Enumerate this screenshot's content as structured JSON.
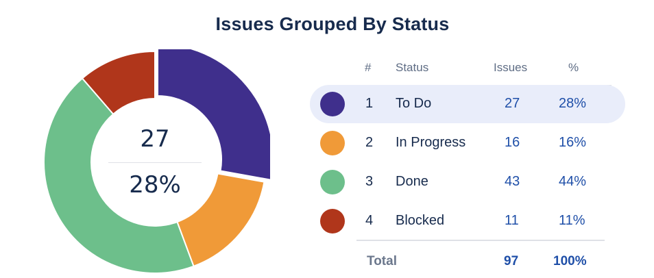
{
  "chart_data": {
    "type": "pie",
    "title": "Issues Grouped By Status",
    "center": {
      "value": "27",
      "percent": "28%"
    },
    "table": {
      "headers": {
        "index": "#",
        "status": "Status",
        "issues": "Issues",
        "percent": "%"
      },
      "rows": [
        {
          "index": "1",
          "status": "To Do",
          "issues": "27",
          "percent": "28%",
          "color": "#3f2f8c",
          "highlighted": true
        },
        {
          "index": "2",
          "status": "In Progress",
          "issues": "16",
          "percent": "16%",
          "color": "#f09a38",
          "highlighted": false
        },
        {
          "index": "3",
          "status": "Done",
          "issues": "43",
          "percent": "44%",
          "color": "#6dbf8b",
          "highlighted": false
        },
        {
          "index": "4",
          "status": "Blocked",
          "issues": "11",
          "percent": "11%",
          "color": "#b0361b",
          "highlighted": false
        }
      ],
      "total": {
        "label": "Total",
        "issues": "97",
        "percent": "100%"
      }
    },
    "values": [
      27,
      16,
      43,
      11
    ],
    "categories": [
      "To Do",
      "In Progress",
      "Done",
      "Blocked"
    ]
  }
}
